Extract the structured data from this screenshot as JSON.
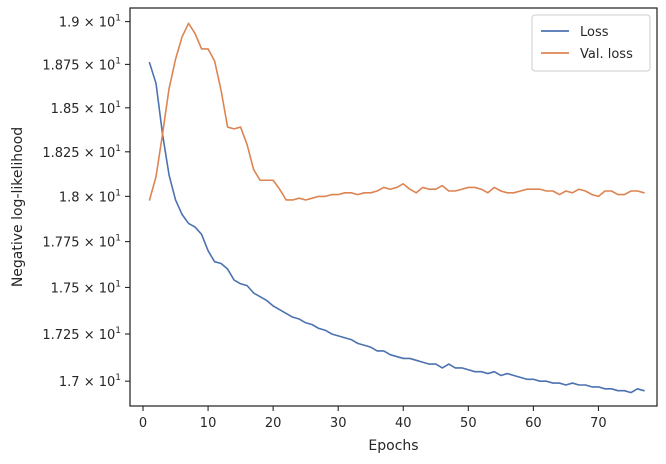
{
  "chart_data": {
    "type": "line",
    "xlabel": "Epochs",
    "ylabel": "Negative log-likelihood",
    "xlim": [
      -2,
      79
    ],
    "ylim": [
      16.87,
      19.08
    ],
    "yscale": "log",
    "grid": false,
    "legend_position": "top-right",
    "x_ticks": [
      0,
      10,
      20,
      30,
      40,
      50,
      60,
      70
    ],
    "x_tick_labels": [
      "0",
      "10",
      "20",
      "30",
      "40",
      "50",
      "60",
      "70"
    ],
    "y_ticks": [
      17.0,
      17.25,
      17.5,
      17.75,
      18.0,
      18.25,
      18.5,
      18.75,
      19.0
    ],
    "y_tick_labels": [
      {
        "mantissa": "1.7",
        "base": "10",
        "exp": "1"
      },
      {
        "mantissa": "1.725",
        "base": "10",
        "exp": "1"
      },
      {
        "mantissa": "1.75",
        "base": "10",
        "exp": "1"
      },
      {
        "mantissa": "1.775",
        "base": "10",
        "exp": "1"
      },
      {
        "mantissa": "1.8",
        "base": "10",
        "exp": "1"
      },
      {
        "mantissa": "1.825",
        "base": "10",
        "exp": "1"
      },
      {
        "mantissa": "1.85",
        "base": "10",
        "exp": "1"
      },
      {
        "mantissa": "1.875",
        "base": "10",
        "exp": "1"
      },
      {
        "mantissa": "1.9",
        "base": "10",
        "exp": "1"
      }
    ],
    "x_start": 1,
    "series": [
      {
        "name": "Loss",
        "color": "#4c72b0",
        "values": [
          18.76,
          18.64,
          18.35,
          18.12,
          17.98,
          17.9,
          17.85,
          17.83,
          17.79,
          17.7,
          17.64,
          17.63,
          17.6,
          17.54,
          17.52,
          17.51,
          17.47,
          17.45,
          17.43,
          17.4,
          17.38,
          17.36,
          17.34,
          17.33,
          17.31,
          17.3,
          17.28,
          17.27,
          17.25,
          17.24,
          17.23,
          17.22,
          17.2,
          17.19,
          17.18,
          17.16,
          17.16,
          17.14,
          17.13,
          17.12,
          17.12,
          17.11,
          17.1,
          17.09,
          17.09,
          17.07,
          17.09,
          17.07,
          17.07,
          17.06,
          17.05,
          17.05,
          17.04,
          17.05,
          17.03,
          17.04,
          17.03,
          17.02,
          17.01,
          17.01,
          17.0,
          17.0,
          16.99,
          16.99,
          16.98,
          16.99,
          16.98,
          16.98,
          16.97,
          16.97,
          16.96,
          16.96,
          16.95,
          16.95,
          16.94,
          16.96,
          16.95
        ]
      },
      {
        "name": "Val. loss",
        "color": "#dd8452",
        "values": [
          17.98,
          18.11,
          18.35,
          18.61,
          18.78,
          18.91,
          18.99,
          18.93,
          18.84,
          18.84,
          18.77,
          18.6,
          18.39,
          18.38,
          18.39,
          18.29,
          18.15,
          18.09,
          18.09,
          18.09,
          18.04,
          17.98,
          17.98,
          17.99,
          17.98,
          17.99,
          18.0,
          18.0,
          18.01,
          18.01,
          18.02,
          18.02,
          18.01,
          18.02,
          18.02,
          18.03,
          18.05,
          18.04,
          18.05,
          18.07,
          18.04,
          18.02,
          18.05,
          18.04,
          18.04,
          18.06,
          18.03,
          18.03,
          18.04,
          18.05,
          18.05,
          18.04,
          18.02,
          18.05,
          18.03,
          18.02,
          18.02,
          18.03,
          18.04,
          18.04,
          18.04,
          18.03,
          18.03,
          18.01,
          18.03,
          18.02,
          18.04,
          18.03,
          18.01,
          18.0,
          18.03,
          18.03,
          18.01,
          18.01,
          18.03,
          18.03,
          18.02
        ]
      }
    ]
  }
}
